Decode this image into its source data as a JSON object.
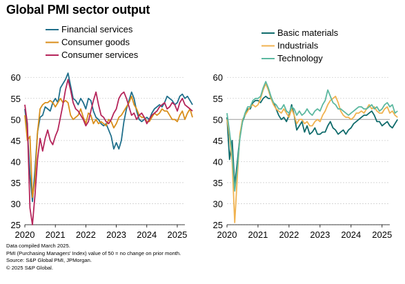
{
  "title": "Global PMI sector output",
  "colors": {
    "financial_services": "#1f6f8b",
    "consumer_goods": "#d98e1a",
    "consumer_services": "#b5245a",
    "basic_materials": "#0f6b6b",
    "industrials": "#f0b24f",
    "technology": "#5cb8a0",
    "reference_line": "#9a9a9a",
    "grid": "#cfcfcf"
  },
  "footnotes": [
    "Data compiled March 2025.",
    "PMI (Purchasing Managers' Index) value of 50 = no change on prior month.",
    "Source: S&P Global PMI, JPMorgan.",
    "© 2025 S&P Global."
  ],
  "chart_data": [
    {
      "type": "line",
      "xlabel": "",
      "ylabel": "",
      "ylim": [
        25,
        62
      ],
      "yticks": [
        25,
        30,
        35,
        40,
        45,
        50,
        55,
        60
      ],
      "xticks": [
        "2020",
        "2021",
        "2022",
        "2023",
        "2024",
        "2025"
      ],
      "xlim": [
        2020.0,
        2025.25
      ],
      "grid": true,
      "reference_line": 50,
      "legend_position": "top-left",
      "x_start": 2020.0,
      "x_step": 0.0833333,
      "series": [
        {
          "name": "Financial services",
          "color_key": "financial_services",
          "values": [
            52.5,
            47.5,
            37.0,
            30.5,
            38.0,
            47.0,
            50.5,
            51.0,
            53.0,
            52.5,
            52.0,
            54.0,
            55.0,
            54.0,
            57.5,
            58.5,
            59.5,
            61.0,
            58.0,
            55.0,
            54.5,
            53.5,
            55.0,
            54.0,
            52.5,
            55.0,
            54.5,
            52.0,
            50.5,
            50.0,
            49.0,
            48.5,
            49.0,
            47.5,
            46.0,
            43.0,
            44.5,
            43.0,
            45.0,
            49.5,
            52.5,
            54.5,
            56.5,
            55.0,
            52.0,
            50.0,
            49.5,
            50.0,
            50.5,
            50.0,
            51.5,
            52.5,
            53.0,
            53.5,
            53.0,
            54.0,
            55.5,
            55.0,
            54.5,
            53.5,
            54.0,
            55.5,
            56.0,
            55.0,
            55.5,
            54.5,
            53.5
          ]
        },
        {
          "name": "Consumer goods",
          "color_key": "consumer_goods",
          "values": [
            51.0,
            45.0,
            46.0,
            31.5,
            35.5,
            47.0,
            52.5,
            53.5,
            54.0,
            54.0,
            54.5,
            54.0,
            53.0,
            54.0,
            55.0,
            54.0,
            54.5,
            54.0,
            51.0,
            50.0,
            50.5,
            51.0,
            52.5,
            50.5,
            49.0,
            51.5,
            51.0,
            49.0,
            50.0,
            49.0,
            49.5,
            49.0,
            48.5,
            50.0,
            49.5,
            48.0,
            49.0,
            50.5,
            51.0,
            52.0,
            53.0,
            54.0,
            55.5,
            53.5,
            52.5,
            51.0,
            50.5,
            50.5,
            49.5,
            49.5,
            50.5,
            51.5,
            51.0,
            51.5,
            52.5,
            52.0,
            52.0,
            51.0,
            50.0,
            50.0,
            49.5,
            51.0,
            52.0,
            50.0,
            51.5,
            52.5,
            50.5
          ]
        },
        {
          "name": "Consumer services",
          "color_key": "consumer_services",
          "values": [
            53.5,
            49.0,
            29.0,
            24.0,
            32.0,
            40.5,
            45.5,
            42.5,
            45.5,
            47.5,
            45.0,
            44.0,
            46.0,
            47.5,
            50.5,
            53.5,
            57.0,
            59.5,
            57.0,
            54.0,
            52.5,
            52.0,
            51.0,
            50.0,
            48.5,
            49.5,
            52.0,
            54.5,
            56.5,
            53.5,
            51.0,
            50.5,
            49.5,
            49.0,
            50.0,
            51.5,
            52.5,
            55.0,
            56.0,
            56.5,
            55.0,
            53.0,
            51.0,
            51.5,
            50.0,
            51.0,
            51.5,
            50.5,
            49.0,
            50.0,
            51.0,
            51.5,
            52.0,
            53.0,
            53.5,
            54.0,
            52.5,
            53.0,
            54.0,
            53.5,
            52.0,
            54.0,
            55.0,
            53.5,
            53.0,
            52.5,
            52.0
          ]
        }
      ]
    },
    {
      "type": "line",
      "xlabel": "",
      "ylabel": "",
      "ylim": [
        25,
        62
      ],
      "yticks": [
        25,
        30,
        35,
        40,
        45,
        50,
        55,
        60
      ],
      "xticks": [
        "2020",
        "2021",
        "2022",
        "2023",
        "2024",
        "2025"
      ],
      "xlim": [
        2020.0,
        2025.25
      ],
      "grid": true,
      "reference_line": 50,
      "legend_position": "top-left",
      "x_start": 2020.0,
      "x_step": 0.0833333,
      "series": [
        {
          "name": "Basic materials",
          "color_key": "basic_materials",
          "values": [
            50.5,
            40.5,
            45.0,
            34.5,
            40.0,
            46.0,
            49.5,
            51.0,
            52.5,
            52.5,
            54.0,
            54.5,
            54.5,
            54.0,
            55.0,
            55.5,
            55.0,
            55.0,
            54.0,
            52.5,
            51.0,
            50.0,
            50.5,
            49.5,
            51.0,
            53.5,
            51.0,
            47.5,
            48.5,
            49.5,
            47.0,
            48.5,
            46.5,
            47.0,
            48.0,
            46.5,
            46.5,
            47.0,
            47.0,
            48.5,
            49.5,
            48.0,
            47.5,
            46.5,
            47.0,
            47.5,
            46.5,
            47.5,
            48.0,
            49.0,
            49.5,
            50.0,
            50.5,
            51.0,
            51.0,
            51.5,
            52.0,
            51.0,
            49.5,
            49.5,
            48.5,
            49.0,
            49.5,
            48.5,
            48.0,
            49.0,
            50.0
          ]
        },
        {
          "name": "Industrials",
          "color_key": "industrials",
          "values": [
            50.0,
            46.0,
            40.0,
            25.5,
            36.5,
            46.5,
            50.0,
            51.0,
            52.0,
            53.0,
            53.5,
            53.0,
            53.5,
            55.0,
            57.0,
            58.5,
            57.0,
            55.0,
            53.5,
            52.5,
            52.0,
            51.5,
            52.5,
            51.5,
            50.5,
            52.5,
            51.0,
            49.0,
            50.0,
            50.0,
            49.0,
            49.5,
            48.5,
            48.5,
            49.5,
            50.0,
            49.5,
            51.0,
            52.0,
            53.5,
            54.5,
            55.0,
            55.5,
            54.0,
            52.0,
            51.0,
            50.5,
            50.5,
            50.0,
            50.5,
            51.5,
            51.5,
            52.0,
            51.5,
            52.5,
            53.5,
            52.5,
            53.0,
            52.0,
            51.5,
            51.5,
            52.5,
            53.0,
            51.5,
            52.0,
            51.0,
            50.5
          ]
        },
        {
          "name": "Technology",
          "color_key": "technology",
          "values": [
            51.5,
            47.0,
            42.0,
            33.0,
            38.5,
            45.5,
            49.5,
            51.5,
            53.0,
            53.0,
            54.5,
            55.0,
            55.0,
            55.5,
            57.5,
            59.0,
            57.5,
            55.5,
            54.0,
            53.5,
            52.5,
            52.5,
            53.5,
            52.0,
            51.5,
            53.0,
            52.5,
            51.0,
            52.0,
            51.0,
            51.5,
            52.5,
            51.5,
            51.0,
            52.0,
            52.5,
            52.0,
            53.5,
            54.5,
            57.0,
            55.5,
            54.0,
            53.5,
            52.5,
            52.5,
            52.0,
            51.5,
            51.0,
            51.5,
            52.0,
            52.5,
            53.0,
            53.0,
            52.5,
            52.5,
            53.0,
            53.5,
            52.5,
            53.0,
            52.0,
            52.5,
            53.5,
            54.0,
            53.0,
            53.5,
            51.5,
            52.0
          ]
        }
      ]
    }
  ]
}
